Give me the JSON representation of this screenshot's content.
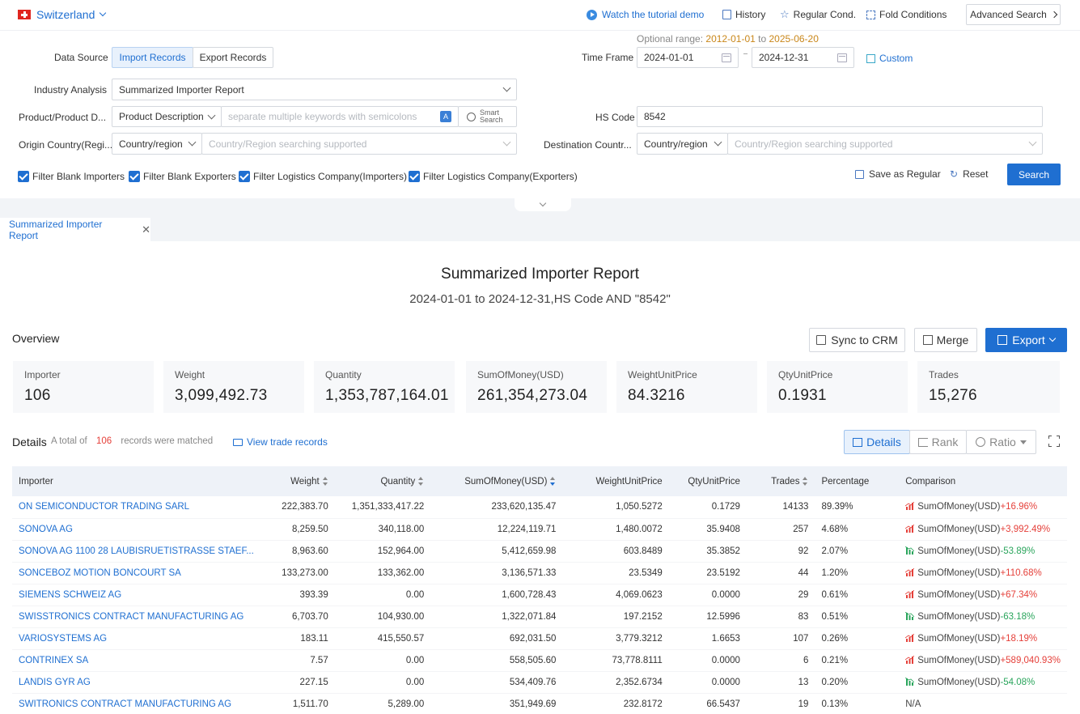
{
  "topbar": {
    "country": "Switzerland",
    "tutorial": "Watch the tutorial demo",
    "history": "History",
    "regular_cond": "Regular Cond.",
    "fold_conditions": "Fold Conditions",
    "advanced_search": "Advanced Search"
  },
  "form": {
    "optional_range_label": "Optional range",
    "optional_range_start": "2012-01-01",
    "optional_range_to": "to",
    "optional_range_end": "2025-06-20",
    "data_source_label": "Data Source",
    "import_records": "Import Records",
    "export_records": "Export Records",
    "time_frame_label": "Time Frame",
    "date_from": "2024-01-01",
    "date_to": "2024-12-31",
    "custom": "Custom",
    "industry_label": "Industry Analysis",
    "industry_value": "Summarized Importer Report",
    "product_label": "Product/Product D...",
    "product_type": "Product Description",
    "product_placeholder": "separate multiple keywords with semicolons",
    "smart_search_1": "Smart",
    "smart_search_2": "Search",
    "hs_label": "HS Code",
    "hs_value": "8542",
    "origin_label": "Origin Country(Regi...",
    "origin_type": "Country/region",
    "origin_placeholder": "Country/Region searching supported",
    "dest_label": "Destination Countr...",
    "dest_type": "Country/region",
    "dest_placeholder": "Country/Region searching supported",
    "filters": [
      "Filter Blank Importers",
      "Filter Blank Exporters",
      "Filter Logistics Company(Importers)",
      "Filter Logistics Company(Exporters)"
    ],
    "save_regular": "Save as Regular",
    "reset": "Reset",
    "search": "Search"
  },
  "tab": {
    "label": "Summarized Importer Report"
  },
  "report": {
    "title": "Summarized Importer Report",
    "subtitle": "2024-01-01 to 2024-12-31,HS Code AND \"8542\""
  },
  "overview": {
    "label": "Overview",
    "sync_crm": "Sync to CRM",
    "merge": "Merge",
    "export": "Export",
    "stats": [
      {
        "title": "Importer",
        "value": "106"
      },
      {
        "title": "Weight",
        "value": "3,099,492.73"
      },
      {
        "title": "Quantity",
        "value": "1,353,787,164.01"
      },
      {
        "title": "SumOfMoney(USD)",
        "value": "261,354,273.04"
      },
      {
        "title": "WeightUnitPrice",
        "value": "84.3216"
      },
      {
        "title": "QtyUnitPrice",
        "value": "0.1931"
      },
      {
        "title": "Trades",
        "value": "15,276"
      }
    ]
  },
  "details": {
    "label": "Details",
    "total_prefix": "A total of",
    "total_count": "106",
    "total_suffix": "records were matched",
    "view_trade": "View trade records",
    "view_details": "Details",
    "view_rank": "Rank",
    "view_ratio": "Ratio",
    "columns": [
      "Importer",
      "Weight",
      "Quantity",
      "SumOfMoney(USD)",
      "WeightUnitPrice",
      "QtyUnitPrice",
      "Trades",
      "Percentage",
      "Comparison"
    ],
    "rows": [
      {
        "importer": "ON SEMICONDUCTOR TRADING SARL",
        "weight": "222,383.70",
        "quantity": "1,351,333,417.22",
        "money": "233,620,135.47",
        "wup": "1,050.5272",
        "qup": "0.1729",
        "trades": "14133",
        "pct": "89.39%",
        "cmp_label": "SumOfMoney(USD)",
        "cmp": "+16.96%",
        "dir": "up"
      },
      {
        "importer": "SONOVA AG",
        "weight": "8,259.50",
        "quantity": "340,118.00",
        "money": "12,224,119.71",
        "wup": "1,480.0072",
        "qup": "35.9408",
        "trades": "257",
        "pct": "4.68%",
        "cmp_label": "SumOfMoney(USD)",
        "cmp": "+3,992.49%",
        "dir": "up"
      },
      {
        "importer": "SONOVA AG 1100 28 LAUBISRUETISTRASSE STAEF...",
        "weight": "8,963.60",
        "quantity": "152,964.00",
        "money": "5,412,659.98",
        "wup": "603.8489",
        "qup": "35.3852",
        "trades": "92",
        "pct": "2.07%",
        "cmp_label": "SumOfMoney(USD)",
        "cmp": "-53.89%",
        "dir": "down"
      },
      {
        "importer": "SONCEBOZ MOTION BONCOURT SA",
        "weight": "133,273.00",
        "quantity": "133,362.00",
        "money": "3,136,571.33",
        "wup": "23.5349",
        "qup": "23.5192",
        "trades": "44",
        "pct": "1.20%",
        "cmp_label": "SumOfMoney(USD)",
        "cmp": "+110.68%",
        "dir": "up"
      },
      {
        "importer": "SIEMENS SCHWEIZ AG",
        "weight": "393.39",
        "quantity": "0.00",
        "money": "1,600,728.43",
        "wup": "4,069.0623",
        "qup": "0.0000",
        "trades": "29",
        "pct": "0.61%",
        "cmp_label": "SumOfMoney(USD)",
        "cmp": "+67.34%",
        "dir": "up"
      },
      {
        "importer": "SWISSTRONICS CONTRACT MANUFACTURING AG",
        "weight": "6,703.70",
        "quantity": "104,930.00",
        "money": "1,322,071.84",
        "wup": "197.2152",
        "qup": "12.5996",
        "trades": "83",
        "pct": "0.51%",
        "cmp_label": "SumOfMoney(USD)",
        "cmp": "-63.18%",
        "dir": "down"
      },
      {
        "importer": "VARIOSYSTEMS AG",
        "weight": "183.11",
        "quantity": "415,550.57",
        "money": "692,031.50",
        "wup": "3,779.3212",
        "qup": "1.6653",
        "trades": "107",
        "pct": "0.26%",
        "cmp_label": "SumOfMoney(USD)",
        "cmp": "+18.19%",
        "dir": "up"
      },
      {
        "importer": "CONTRINEX SA",
        "weight": "7.57",
        "quantity": "0.00",
        "money": "558,505.60",
        "wup": "73,778.8111",
        "qup": "0.0000",
        "trades": "6",
        "pct": "0.21%",
        "cmp_label": "SumOfMoney(USD)",
        "cmp": "+589,040.93%",
        "dir": "up"
      },
      {
        "importer": "LANDIS GYR AG",
        "weight": "227.15",
        "quantity": "0.00",
        "money": "534,409.76",
        "wup": "2,352.6734",
        "qup": "0.0000",
        "trades": "13",
        "pct": "0.20%",
        "cmp_label": "SumOfMoney(USD)",
        "cmp": "-54.08%",
        "dir": "down"
      },
      {
        "importer": "SWITRONICS CONTRACT MANUFACTURING AG",
        "weight": "1,511.70",
        "quantity": "5,289.00",
        "money": "351,949.69",
        "wup": "232.8172",
        "qup": "66.5437",
        "trades": "19",
        "pct": "0.13%",
        "cmp_label": "",
        "cmp": "N/A",
        "dir": "none"
      }
    ]
  },
  "colors": {
    "accent": "#1f6fd1",
    "up": "#e5403a",
    "down": "#2aa55c",
    "optional_range": "#c9871a"
  }
}
